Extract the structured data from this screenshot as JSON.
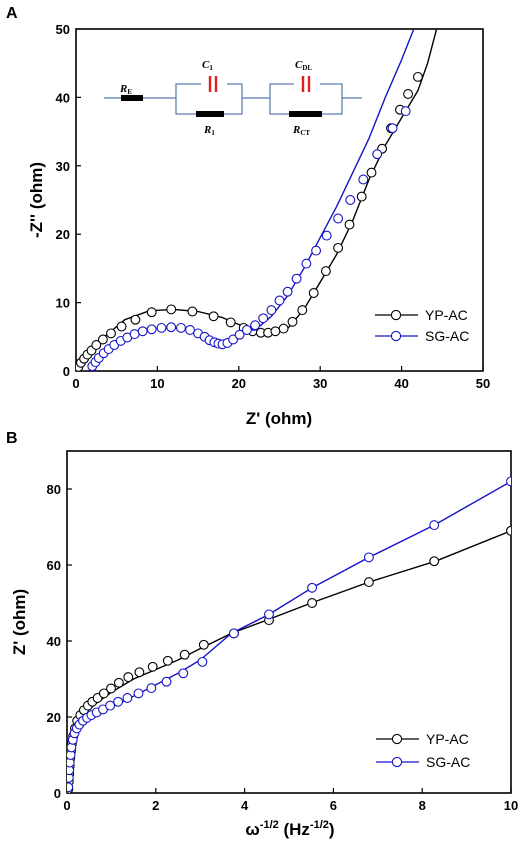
{
  "colors": {
    "yp": "#000000",
    "sg": "#1414c8",
    "capacitor": "#e02020",
    "wire": "#5577aa"
  },
  "chart_data": [
    {
      "panel_label": "A",
      "type": "line",
      "xlabel": "Z' (ohm)",
      "ylabel": "-Z'' (ohm)",
      "xlim": [
        0,
        50
      ],
      "ylim": [
        0,
        50
      ],
      "xticks": [
        "0",
        "10",
        "20",
        "30",
        "40",
        "50"
      ],
      "yticks": [
        "0",
        "10",
        "20",
        "30",
        "40",
        "50"
      ],
      "legend_position": "lower-right",
      "series": [
        {
          "name": "YP-AC",
          "color": "#000000",
          "line": [
            [
              0.05,
              0
            ],
            [
              0.4,
              0.8
            ],
            [
              1.2,
              2.2
            ],
            [
              3,
              4.5
            ],
            [
              6,
              7.5
            ],
            [
              9,
              8.8
            ],
            [
              12,
              9.0
            ],
            [
              15,
              8.7
            ],
            [
              18,
              7.8
            ],
            [
              20,
              6.8
            ],
            [
              22,
              5.8
            ],
            [
              24,
              5.6
            ],
            [
              26,
              6.2
            ],
            [
              28,
              9
            ],
            [
              30,
              13
            ],
            [
              32,
              17
            ],
            [
              34,
              22
            ],
            [
              36,
              28
            ],
            [
              38,
              33
            ],
            [
              40,
              37
            ],
            [
              42,
              41
            ],
            [
              43.2,
              45
            ],
            [
              44.3,
              50
            ]
          ],
          "markers": [
            [
              0.3,
              0.6
            ],
            [
              0.6,
              1.2
            ],
            [
              1.0,
              1.8
            ],
            [
              1.4,
              2.4
            ],
            [
              1.9,
              3.0
            ],
            [
              2.5,
              3.8
            ],
            [
              3.3,
              4.6
            ],
            [
              4.3,
              5.5
            ],
            [
              5.6,
              6.5
            ],
            [
              7.3,
              7.5
            ],
            [
              9.3,
              8.6
            ],
            [
              11.7,
              9.0
            ],
            [
              14.3,
              8.7
            ],
            [
              16.9,
              8.0
            ],
            [
              19.0,
              7.1
            ],
            [
              20.6,
              6.3
            ],
            [
              21.7,
              5.8
            ],
            [
              22.7,
              5.6
            ],
            [
              23.6,
              5.6
            ],
            [
              24.5,
              5.8
            ],
            [
              25.5,
              6.2
            ],
            [
              26.6,
              7.2
            ],
            [
              27.8,
              8.9
            ],
            [
              29.2,
              11.4
            ],
            [
              30.7,
              14.6
            ],
            [
              32.2,
              18.0
            ],
            [
              33.6,
              21.4
            ],
            [
              35.1,
              25.5
            ],
            [
              36.3,
              29.0
            ],
            [
              37.6,
              32.5
            ],
            [
              38.7,
              35.5
            ],
            [
              39.8,
              38.2
            ],
            [
              40.8,
              40.5
            ],
            [
              42.0,
              43.0
            ]
          ]
        },
        {
          "name": "SG-AC",
          "color": "#1414c8",
          "line": [
            [
              2.0,
              0.6
            ],
            [
              2.8,
              1.5
            ],
            [
              4,
              2.8
            ],
            [
              6,
              4.5
            ],
            [
              8,
              5.8
            ],
            [
              10,
              6.2
            ],
            [
              12,
              6.3
            ],
            [
              14,
              6.1
            ],
            [
              16,
              5.0
            ],
            [
              17.5,
              4.0
            ],
            [
              18.5,
              4.0
            ],
            [
              19.5,
              4.8
            ],
            [
              21,
              6.0
            ],
            [
              22,
              6.0
            ],
            [
              24,
              8
            ],
            [
              26,
              11
            ],
            [
              28,
              15
            ],
            [
              30,
              19.5
            ],
            [
              32,
              24
            ],
            [
              34,
              29
            ],
            [
              36,
              34
            ],
            [
              38,
              40
            ],
            [
              40,
              45.5
            ],
            [
              41.5,
              50
            ]
          ],
          "markers": [
            [
              2.0,
              0.7
            ],
            [
              2.4,
              1.3
            ],
            [
              2.8,
              1.9
            ],
            [
              3.4,
              2.6
            ],
            [
              4.0,
              3.2
            ],
            [
              4.7,
              3.8
            ],
            [
              5.5,
              4.4
            ],
            [
              6.3,
              4.9
            ],
            [
              7.2,
              5.4
            ],
            [
              8.2,
              5.8
            ],
            [
              9.3,
              6.1
            ],
            [
              10.5,
              6.3
            ],
            [
              11.7,
              6.4
            ],
            [
              12.9,
              6.3
            ],
            [
              14.0,
              6.0
            ],
            [
              15.0,
              5.5
            ],
            [
              15.8,
              5.0
            ],
            [
              16.4,
              4.5
            ],
            [
              17.0,
              4.2
            ],
            [
              17.5,
              4.0
            ],
            [
              18.0,
              3.9
            ],
            [
              18.6,
              4.1
            ],
            [
              19.3,
              4.6
            ],
            [
              20.1,
              5.3
            ],
            [
              21.0,
              6.0
            ],
            [
              22.0,
              6.7
            ],
            [
              23.0,
              7.7
            ],
            [
              24.0,
              8.9
            ],
            [
              25.0,
              10.3
            ],
            [
              26.0,
              11.6
            ],
            [
              27.1,
              13.5
            ],
            [
              28.3,
              15.7
            ],
            [
              29.5,
              17.6
            ],
            [
              30.8,
              19.8
            ],
            [
              32.2,
              22.3
            ],
            [
              33.7,
              25.0
            ],
            [
              35.3,
              28.0
            ],
            [
              37.0,
              31.7
            ],
            [
              38.9,
              35.5
            ],
            [
              40.5,
              38.0
            ]
          ]
        }
      ]
    },
    {
      "panel_label": "B",
      "type": "line",
      "xlabel": "ω",
      "xlabel_exp": "-1/2",
      "xlabel_unit": " (Hz",
      "xlabel_unit_exp": "-1/2",
      "xlabel_close": ")",
      "ylabel": "Z' (ohm)",
      "xlim": [
        0,
        10
      ],
      "ylim": [
        0,
        90
      ],
      "xticks": [
        "0",
        "2",
        "4",
        "6",
        "8",
        "10"
      ],
      "yticks": [
        "0",
        "20",
        "40",
        "60",
        "80"
      ],
      "legend_position": "lower-right",
      "series": [
        {
          "name": "YP-AC",
          "color": "#000000",
          "line": [
            [
              0.02,
              0
            ],
            [
              0.05,
              6
            ],
            [
              0.1,
              13
            ],
            [
              0.2,
              17
            ],
            [
              0.4,
              21
            ],
            [
              0.7,
              24
            ],
            [
              1.0,
              26.5
            ],
            [
              1.5,
              30
            ],
            [
              2.0,
              32.5
            ],
            [
              2.5,
              35
            ],
            [
              3.0,
              38
            ],
            [
              3.7,
              42
            ],
            [
              4.5,
              45.5
            ],
            [
              5.5,
              50
            ],
            [
              6.8,
              55.5
            ],
            [
              8.3,
              61
            ],
            [
              10,
              69
            ]
          ],
          "markers": [
            [
              0.03,
              1
            ],
            [
              0.04,
              3
            ],
            [
              0.05,
              5
            ],
            [
              0.06,
              7
            ],
            [
              0.07,
              9
            ],
            [
              0.09,
              11
            ],
            [
              0.11,
              13
            ],
            [
              0.14,
              15
            ],
            [
              0.18,
              17
            ],
            [
              0.23,
              19
            ],
            [
              0.3,
              20.5
            ],
            [
              0.38,
              21.8
            ],
            [
              0.47,
              23
            ],
            [
              0.57,
              24
            ],
            [
              0.69,
              25
            ],
            [
              0.83,
              26.2
            ],
            [
              0.99,
              27.5
            ],
            [
              1.17,
              29
            ],
            [
              1.38,
              30.5
            ],
            [
              1.63,
              31.8
            ],
            [
              1.93,
              33.2
            ],
            [
              2.27,
              34.8
            ],
            [
              2.65,
              36.4
            ],
            [
              3.08,
              39
            ],
            [
              3.76,
              42
            ],
            [
              4.55,
              45.5
            ],
            [
              5.52,
              50
            ],
            [
              6.8,
              55.5
            ],
            [
              8.27,
              61
            ],
            [
              10,
              69
            ]
          ]
        },
        {
          "name": "SG-AC",
          "color": "#1414c8",
          "line": [
            [
              0.02,
              0
            ],
            [
              0.05,
              7
            ],
            [
              0.1,
              13
            ],
            [
              0.2,
              16
            ],
            [
              0.4,
              18.5
            ],
            [
              0.7,
              20.5
            ],
            [
              1.0,
              22.5
            ],
            [
              1.5,
              25.5
            ],
            [
              2.0,
              28.5
            ],
            [
              2.5,
              31.5
            ],
            [
              3.0,
              35
            ],
            [
              3.7,
              42
            ],
            [
              4.55,
              47
            ],
            [
              5.52,
              54
            ],
            [
              6.8,
              62
            ],
            [
              8.27,
              70.5
            ],
            [
              10,
              82
            ]
          ],
          "markers": [
            [
              0.03,
              1.5
            ],
            [
              0.04,
              4
            ],
            [
              0.05,
              6
            ],
            [
              0.06,
              8
            ],
            [
              0.08,
              10
            ],
            [
              0.1,
              12
            ],
            [
              0.13,
              14
            ],
            [
              0.17,
              15.7
            ],
            [
              0.22,
              17
            ],
            [
              0.28,
              18
            ],
            [
              0.36,
              19
            ],
            [
              0.45,
              19.8
            ],
            [
              0.55,
              20.5
            ],
            [
              0.67,
              21.2
            ],
            [
              0.81,
              22
            ],
            [
              0.97,
              23
            ],
            [
              1.15,
              24
            ],
            [
              1.36,
              25
            ],
            [
              1.61,
              26.2
            ],
            [
              1.9,
              27.6
            ],
            [
              2.24,
              29.3
            ],
            [
              2.62,
              31.5
            ],
            [
              3.05,
              34.5
            ],
            [
              3.76,
              42
            ],
            [
              4.55,
              47
            ],
            [
              5.52,
              54
            ],
            [
              6.8,
              62
            ],
            [
              8.27,
              70.5
            ],
            [
              10,
              82
            ]
          ]
        }
      ]
    }
  ],
  "circuit": {
    "re_main": "R",
    "re_sub": "E",
    "c1_main": "C",
    "c1_sub": "1",
    "r1_main": "R",
    "r1_sub": "1",
    "cdl_main": "C",
    "cdl_sub": "DL",
    "rct_main": "R",
    "rct_sub": "CT"
  }
}
